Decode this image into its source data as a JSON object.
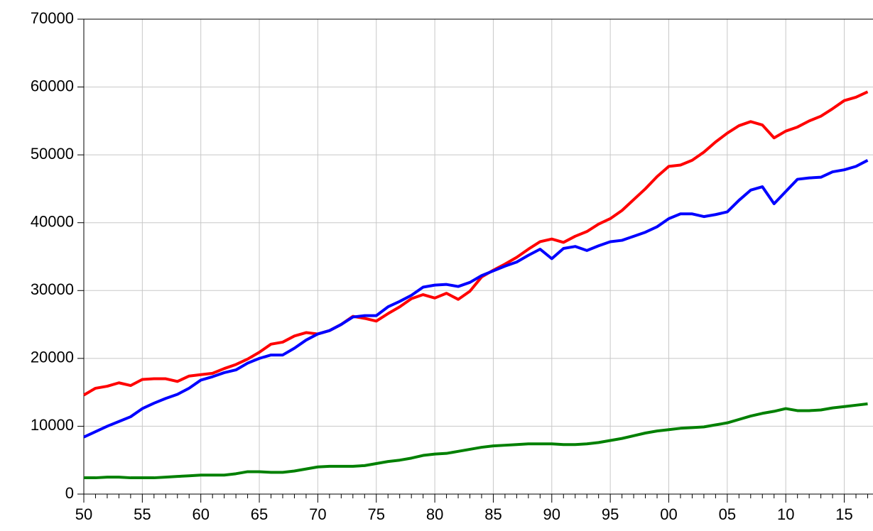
{
  "chart_data": {
    "type": "line",
    "categories": [
      "50",
      null,
      null,
      null,
      null,
      "55",
      null,
      null,
      null,
      null,
      "60",
      null,
      null,
      null,
      null,
      "65",
      null,
      null,
      null,
      null,
      "70",
      null,
      null,
      null,
      null,
      "75",
      null,
      null,
      null,
      null,
      "80",
      null,
      null,
      null,
      null,
      "85",
      null,
      null,
      null,
      null,
      "90",
      null,
      null,
      null,
      null,
      "95",
      null,
      null,
      null,
      null,
      "00",
      null,
      null,
      null,
      null,
      "05",
      null,
      null,
      null,
      null,
      "10",
      null,
      null,
      null,
      null,
      "15",
      null,
      null
    ],
    "series": [
      {
        "color": "#ff0000",
        "values": [
          14600,
          15600,
          15900,
          16400,
          16000,
          16900,
          17000,
          17000,
          16600,
          17400,
          17600,
          17800,
          18500,
          19100,
          19900,
          20900,
          22100,
          22400,
          23300,
          23800,
          23600,
          24100,
          25000,
          26200,
          25900,
          25500,
          26600,
          27600,
          28800,
          29400,
          28900,
          29600,
          28700,
          29900,
          32000,
          33000,
          33900,
          34900,
          36100,
          37200,
          37600,
          37100,
          38000,
          38700,
          39800,
          40600,
          41800,
          43400,
          45000,
          46800,
          48300,
          48500,
          49200,
          50400,
          51900,
          53200,
          54300,
          54900,
          54400,
          52500,
          53500,
          54100,
          55000,
          55700,
          56800,
          58000,
          58500,
          59300
        ]
      },
      {
        "color": "#0000ff",
        "values": [
          8400,
          9200,
          10000,
          10700,
          11400,
          12600,
          13400,
          14100,
          14700,
          15600,
          16800,
          17300,
          17900,
          18300,
          19300,
          20000,
          20500,
          20500,
          21500,
          22700,
          23600,
          24100,
          25000,
          26100,
          26300,
          26300,
          27600,
          28400,
          29300,
          30500,
          30800,
          30900,
          30600,
          31200,
          32200,
          32900,
          33600,
          34200,
          35200,
          36100,
          34700,
          36200,
          36500,
          35900,
          36600,
          37200,
          37400,
          38000,
          38600,
          39400,
          40600,
          41300,
          41300,
          40900,
          41200,
          41600,
          43300,
          44800,
          45300,
          42800,
          44600,
          46400,
          46600,
          46700,
          47500,
          47800,
          48300,
          49200
        ]
      },
      {
        "color": "#008000",
        "values": [
          2400,
          2400,
          2500,
          2500,
          2400,
          2400,
          2400,
          2500,
          2600,
          2700,
          2800,
          2800,
          2800,
          3000,
          3300,
          3300,
          3200,
          3200,
          3400,
          3700,
          4000,
          4100,
          4100,
          4100,
          4200,
          4500,
          4800,
          5000,
          5300,
          5700,
          5900,
          6000,
          6300,
          6600,
          6900,
          7100,
          7200,
          7300,
          7400,
          7400,
          7400,
          7300,
          7300,
          7400,
          7600,
          7900,
          8200,
          8600,
          9000,
          9300,
          9500,
          9700,
          9800,
          9900,
          10200,
          10500,
          11000,
          11500,
          11900,
          12200,
          12600,
          12300,
          12300,
          12400,
          12700,
          12900,
          13100,
          13300
        ]
      }
    ],
    "ylim": [
      0,
      70000
    ],
    "yticks": [
      0,
      10000,
      20000,
      30000,
      40000,
      50000,
      60000,
      70000
    ],
    "grid": true
  }
}
